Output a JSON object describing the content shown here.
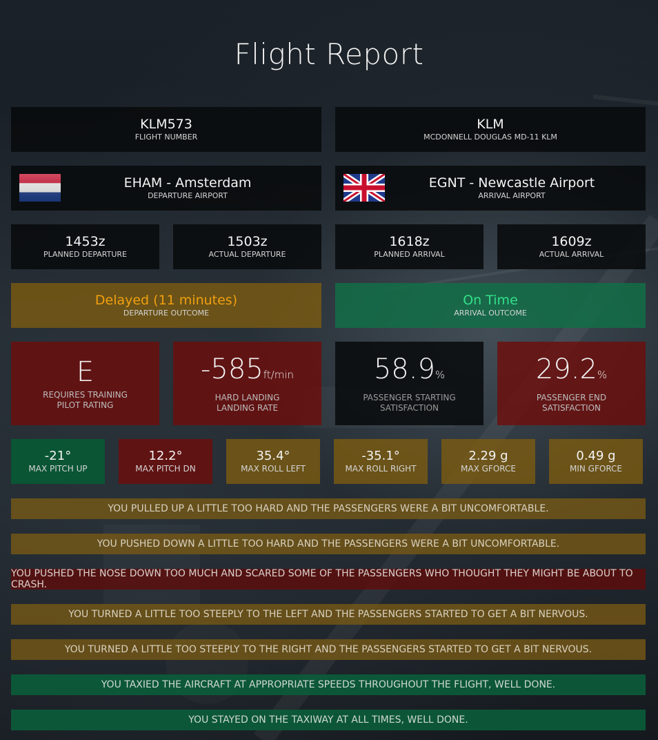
{
  "title": "Flight Report",
  "flight": {
    "number": "KLM573",
    "number_label": "FLIGHT NUMBER"
  },
  "aircraft": {
    "airline": "KLM",
    "type_label": "MCDONNELL DOUGLAS MD-11 KLM"
  },
  "departure": {
    "airport": "EHAM - Amsterdam",
    "label": "DEPARTURE AIRPORT",
    "flag": "netherlands-flag-icon"
  },
  "arrival": {
    "airport": "EGNT - Newcastle Airport",
    "label": "ARRIVAL AIRPORT",
    "flag": "uk-flag-icon"
  },
  "times": [
    {
      "value": "1453z",
      "label": "PLANNED DEPARTURE"
    },
    {
      "value": "1503z",
      "label": "ACTUAL DEPARTURE"
    },
    {
      "value": "1618z",
      "label": "PLANNED ARRIVAL"
    },
    {
      "value": "1609z",
      "label": "ACTUAL ARRIVAL"
    }
  ],
  "outcomes": {
    "departure": {
      "value": "Delayed (11 minutes)",
      "label": "DEPARTURE OUTCOME",
      "color": "#f0a010"
    },
    "arrival": {
      "value": "On Time",
      "label": "ARRIVAL OUTCOME",
      "color": "#33e08a"
    }
  },
  "ratings": {
    "pilot": {
      "value": "E",
      "line1": "REQUIRES TRAINING",
      "line2": "PILOT RATING"
    },
    "landing": {
      "value": "-585",
      "unit": "ft/min",
      "line1": "HARD LANDING",
      "line2": "LANDING RATE"
    },
    "start_satisfaction": {
      "value": "58.9",
      "unit": "%",
      "line1": "PASSENGER STARTING",
      "line2": "SATISFACTION"
    },
    "end_satisfaction": {
      "value": "29.2",
      "unit": "%",
      "line1": "PASSENGER END",
      "line2": "SATISFACTION"
    }
  },
  "stats": [
    {
      "value": "-21°",
      "label": "MAX PITCH UP"
    },
    {
      "value": "12.2°",
      "label": "MAX PITCH DN"
    },
    {
      "value": "35.4°",
      "label": "MAX ROLL LEFT"
    },
    {
      "value": "-35.1°",
      "label": "MAX ROLL RIGHT"
    },
    {
      "value": "2.29 g",
      "label": "MAX GFORCE"
    },
    {
      "value": "0.49 g",
      "label": "MIN GFORCE"
    }
  ],
  "messages": [
    "YOU PULLED UP A LITTLE TOO HARD AND THE PASSENGERS WERE A BIT UNCOMFORTABLE.",
    "YOU PUSHED DOWN A LITTLE TOO HARD AND THE PASSENGERS WERE A BIT UNCOMFORTABLE.",
    "YOU PUSHED THE NOSE DOWN TOO MUCH AND SCARED SOME OF THE PASSENGERS WHO THOUGHT THEY MIGHT BE ABOUT TO CRASH.",
    "YOU TURNED A LITTLE TOO STEEPLY TO THE LEFT AND THE PASSENGERS STARTED TO GET A BIT NERVOUS.",
    "YOU TURNED A LITTLE TOO STEEPLY TO THE RIGHT AND THE PASSENGERS STARTED TO GET A BIT NERVOUS.",
    "YOU TAXIED THE AIRCRAFT AT APPROPRIATE SPEEDS THROUGHOUT THE FLIGHT, WELL DONE.",
    "YOU STAYED ON THE TAXIWAY AT ALL TIMES, WELL DONE."
  ]
}
